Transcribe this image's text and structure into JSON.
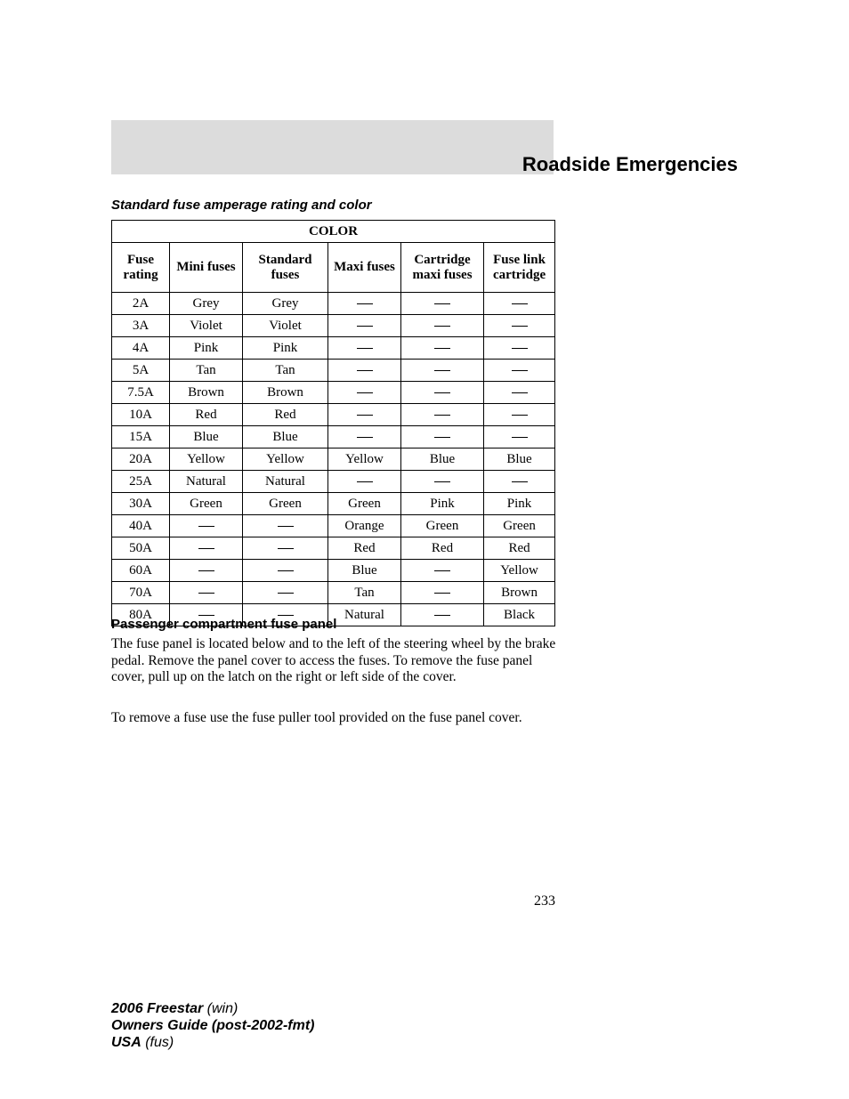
{
  "section_title": "Roadside Emergencies",
  "gray_bar_color": "#dcdcdc",
  "subheader1": "Standard fuse amperage rating and color",
  "table": {
    "super_header": "COLOR",
    "columns": [
      "Fuse rating",
      "Mini fuses",
      "Standard fuses",
      "Maxi fuses",
      "Cartridge maxi fuses",
      "Fuse link cartridge"
    ],
    "header_fontsize": 15,
    "cell_fontsize": 15,
    "rows": [
      [
        "2A",
        "Grey",
        "Grey",
        "—",
        "—",
        "—"
      ],
      [
        "3A",
        "Violet",
        "Violet",
        "—",
        "—",
        "—"
      ],
      [
        "4A",
        "Pink",
        "Pink",
        "—",
        "—",
        "—"
      ],
      [
        "5A",
        "Tan",
        "Tan",
        "—",
        "—",
        "—"
      ],
      [
        "7.5A",
        "Brown",
        "Brown",
        "—",
        "—",
        "—"
      ],
      [
        "10A",
        "Red",
        "Red",
        "—",
        "—",
        "—"
      ],
      [
        "15A",
        "Blue",
        "Blue",
        "—",
        "—",
        "—"
      ],
      [
        "20A",
        "Yellow",
        "Yellow",
        "Yellow",
        "Blue",
        "Blue"
      ],
      [
        "25A",
        "Natural",
        "Natural",
        "—",
        "—",
        "—"
      ],
      [
        "30A",
        "Green",
        "Green",
        "Green",
        "Pink",
        "Pink"
      ],
      [
        "40A",
        "—",
        "—",
        "Orange",
        "Green",
        "Green"
      ],
      [
        "50A",
        "—",
        "—",
        "Red",
        "Red",
        "Red"
      ],
      [
        "60A",
        "—",
        "—",
        "Blue",
        "—",
        "Yellow"
      ],
      [
        "70A",
        "—",
        "—",
        "Tan",
        "—",
        "Brown"
      ],
      [
        "80A",
        "—",
        "—",
        "Natural",
        "—",
        "Black"
      ]
    ]
  },
  "subheader2": "Passenger compartment fuse panel",
  "paragraph1": "The fuse panel is located below and to the left of the steering wheel by the brake pedal. Remove the panel cover to access the fuses. To remove the fuse panel cover, pull up on the latch on the right or left side of the cover.",
  "paragraph2": "To remove a fuse use the fuse puller tool provided on the fuse panel cover.",
  "page_number": "233",
  "footer": {
    "line1_bold": "2006 Freestar",
    "line1_ital": " (win)",
    "line2_bold": "Owners Guide (post-2002-fmt)",
    "line3_bold": "USA",
    "line3_ital": " (fus)"
  }
}
